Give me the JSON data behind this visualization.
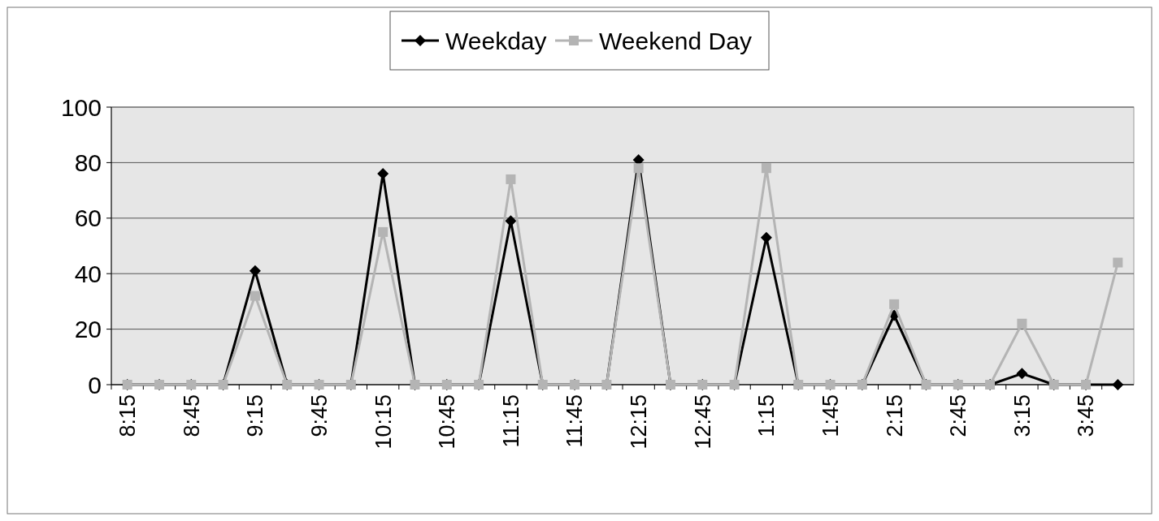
{
  "chart_data": {
    "type": "line",
    "categories": [
      "8:15",
      null,
      "8:45",
      null,
      "9:15",
      null,
      "9:45",
      null,
      "10:15",
      null,
      "10:45",
      null,
      "11:15",
      null,
      "11:45",
      null,
      "12:15",
      null,
      "12:45",
      null,
      "1:15",
      null,
      "1:45",
      null,
      "2:15",
      null,
      "2:45",
      null,
      "3:15",
      null,
      "3:45",
      null
    ],
    "series": [
      {
        "name": "Weekday",
        "color": "#000000",
        "marker": "diamond",
        "values": [
          0,
          0,
          0,
          0,
          41,
          0,
          0,
          0,
          76,
          0,
          0,
          0,
          59,
          0,
          0,
          0,
          81,
          0,
          0,
          0,
          53,
          0,
          0,
          0,
          25,
          0,
          0,
          0,
          4,
          0,
          0,
          0
        ]
      },
      {
        "name": "Weekend Day",
        "color": "#b4b4b4",
        "marker": "square",
        "values": [
          0,
          0,
          0,
          0,
          32,
          0,
          0,
          0,
          55,
          0,
          0,
          0,
          74,
          0,
          0,
          0,
          78,
          0,
          0,
          0,
          78,
          0,
          0,
          0,
          29,
          0,
          0,
          0,
          22,
          0,
          0,
          44
        ]
      }
    ],
    "ylim": [
      0,
      100
    ],
    "yticks": [
      0,
      20,
      40,
      60,
      80,
      100
    ],
    "grid": "y",
    "legend": "top"
  }
}
